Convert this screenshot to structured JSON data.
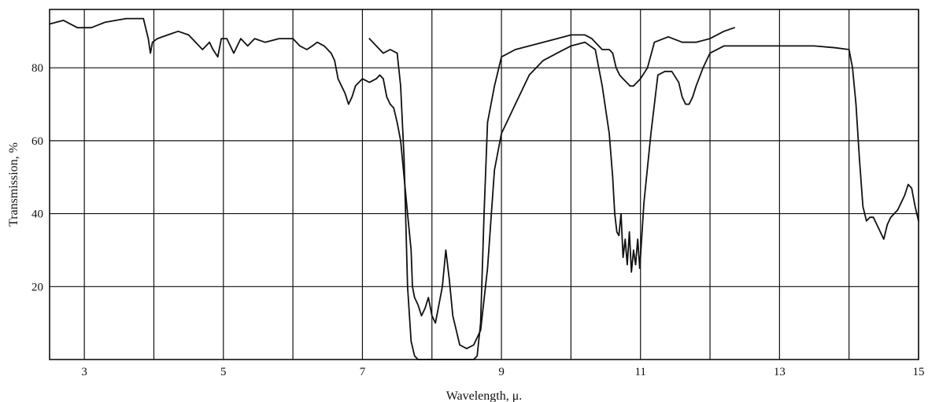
{
  "chart_data": {
    "type": "line",
    "xlabel": "Wavelength, μ.",
    "ylabel": "Transmission, %",
    "xlim": [
      2.5,
      15
    ],
    "ylim": [
      0,
      96
    ],
    "grid": true,
    "xticks": [
      3,
      5,
      7,
      9,
      11,
      13,
      15
    ],
    "yticks": [
      20,
      40,
      60,
      80
    ],
    "series": [
      {
        "x": [
          2.5,
          2.7,
          2.9,
          3.1,
          3.3,
          3.6,
          3.85,
          3.92,
          3.95,
          3.98,
          4.05,
          4.2,
          4.35,
          4.5,
          4.6,
          4.7,
          4.75,
          4.8,
          4.85,
          4.92,
          4.97,
          5.05,
          5.15,
          5.25,
          5.35,
          5.45,
          5.6,
          5.8,
          6.0,
          6.1,
          6.2,
          6.28,
          6.35,
          6.45,
          6.55,
          6.6,
          6.65,
          6.7,
          6.75,
          6.8,
          6.85,
          6.9,
          7.0,
          7.1,
          7.2,
          7.25,
          7.3,
          7.35,
          7.4,
          7.45,
          7.5,
          7.55,
          7.6,
          7.65,
          7.7,
          7.72,
          7.75,
          7.8,
          7.85,
          7.9,
          7.95,
          8.0,
          8.05,
          8.1,
          8.15,
          8.2,
          8.25,
          8.3,
          8.35,
          8.4,
          8.5,
          8.6,
          8.7,
          8.8,
          8.9,
          9.0,
          9.2,
          9.4,
          9.6,
          9.8,
          10.0,
          10.2,
          10.35,
          10.45,
          10.55,
          10.6,
          10.63,
          10.66,
          10.69,
          10.72,
          10.75,
          10.78,
          10.81,
          10.84,
          10.87,
          10.9,
          10.93,
          10.96,
          10.99,
          11.05,
          11.15,
          11.25,
          11.35,
          11.45,
          11.55,
          11.6,
          11.65,
          11.7,
          11.75,
          11.8,
          11.9,
          12.0,
          12.2,
          12.4,
          12.6,
          12.8,
          13.0,
          13.2,
          13.5,
          13.8,
          14.0,
          14.05,
          14.1,
          14.15,
          14.2,
          14.25,
          14.3,
          14.35,
          14.4,
          14.45,
          14.5,
          14.55,
          14.6,
          14.7,
          14.8,
          14.85,
          14.9,
          14.95,
          15.0
        ],
        "values": [
          92,
          93,
          91,
          91,
          92.5,
          93.5,
          93.5,
          88,
          84,
          87,
          88,
          89,
          90,
          89,
          87,
          85,
          86,
          87,
          85,
          83,
          88,
          88,
          84,
          88,
          86,
          88,
          87,
          88,
          88,
          86,
          85,
          86,
          87,
          86,
          84,
          82,
          77,
          75,
          73,
          70,
          72,
          75,
          77,
          76,
          77,
          78,
          77,
          72,
          70,
          69,
          65,
          60,
          50,
          40,
          30,
          20,
          17,
          15,
          12,
          14,
          17,
          12,
          10,
          15,
          20,
          30,
          22,
          12,
          8,
          4,
          3,
          4,
          8,
          25,
          52,
          62,
          70,
          78,
          82,
          84,
          86,
          87,
          85,
          75,
          62,
          50,
          40,
          35,
          34,
          40,
          28,
          33,
          26,
          35,
          24,
          30,
          26,
          33,
          25,
          43,
          62,
          78,
          79,
          79,
          76,
          72,
          70,
          70,
          72,
          75,
          80,
          84,
          86,
          86,
          86,
          86,
          86,
          86,
          86,
          85.5,
          85,
          80,
          70,
          55,
          42,
          38,
          39,
          39,
          37,
          35,
          33,
          37,
          39,
          41,
          45,
          48,
          47,
          42,
          38
        ]
      },
      {
        "x": [
          7.1,
          7.2,
          7.3,
          7.4,
          7.5,
          7.55,
          7.6,
          7.65,
          7.7,
          7.75,
          7.8,
          8.0,
          8.2,
          8.4,
          8.5,
          8.55,
          8.6,
          8.65,
          8.7,
          8.75,
          8.8,
          8.9,
          9.0,
          9.2,
          9.4,
          9.6,
          9.8,
          10.0,
          10.1,
          10.2,
          10.3,
          10.4,
          10.45,
          10.5,
          10.55,
          10.6,
          10.65,
          10.7,
          10.75,
          10.8,
          10.85,
          10.9,
          10.95,
          11.0,
          11.1,
          11.2,
          11.4,
          11.6,
          11.8,
          12.0,
          12.2,
          12.35
        ],
        "values": [
          88,
          86,
          84,
          85,
          84,
          75,
          55,
          20,
          5,
          1,
          0,
          0,
          0,
          0,
          0,
          0,
          0,
          1,
          10,
          40,
          65,
          75,
          83,
          85,
          86,
          87,
          88,
          89,
          89,
          89,
          88,
          86,
          85,
          85,
          85,
          84,
          80,
          78,
          77,
          76,
          75,
          75,
          76,
          77,
          80,
          87,
          88.5,
          87,
          87,
          88,
          90,
          91
        ]
      }
    ]
  }
}
